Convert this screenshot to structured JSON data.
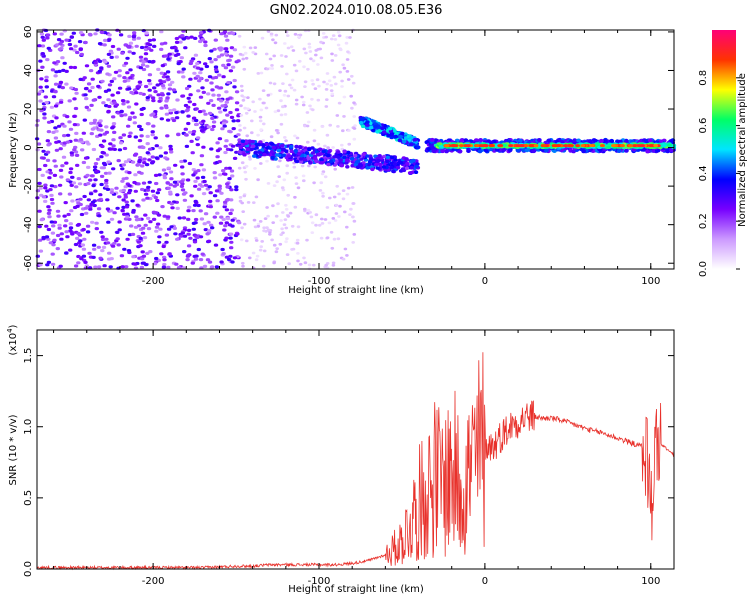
{
  "title": "GN02.2024.010.08.05.E36",
  "colors": {
    "snr_line": "#e8302a",
    "axes": "#000000"
  },
  "chart_data": [
    {
      "type": "heatmap",
      "xlabel": "Height of straight line (km)",
      "ylabel": "Frequency (Hz)",
      "xlim": [
        -270,
        114
      ],
      "ylim": [
        -63,
        61
      ],
      "xticks": [
        -200,
        -100,
        0,
        100
      ],
      "yticks": [
        -60,
        -40,
        -20,
        0,
        20,
        40,
        60
      ],
      "colorbar": {
        "label": "Normalized spectral amplitude",
        "ticks": [
          "0.0",
          "0.2",
          "0.4",
          "0.6",
          "0.8"
        ],
        "range": [
          0,
          1
        ],
        "colormap": [
          "#ffffff",
          "#cc99ff",
          "#7700ff",
          "#0000ff",
          "#00e5ff",
          "#00ff66",
          "#ffff00",
          "#ff3300",
          "#ff0077"
        ]
      },
      "features": [
        {
          "x_range": [
            -270,
            -148
          ],
          "y_range": [
            -63,
            61
          ],
          "level": "scattered broadband"
        },
        {
          "x_range": [
            -148,
            -40
          ],
          "center_hz_start": 0,
          "center_hz_end": -10,
          "level": "mid"
        },
        {
          "x_range": [
            -75,
            -40
          ],
          "center_hz_start": 14,
          "center_hz_end": 2,
          "level": "mid-high"
        },
        {
          "x_range": [
            -35,
            114
          ],
          "center_hz": 1,
          "level": "high"
        }
      ]
    },
    {
      "type": "line",
      "xlabel": "Height of straight line (km)",
      "ylabel": "SNR (10 * v/v)",
      "yscale_label": "(x10",
      "yscale_exp": "4",
      "xlim": [
        -270,
        114
      ],
      "ylim": [
        0,
        1.68
      ],
      "xticks": [
        -200,
        -100,
        0,
        100
      ],
      "yticks": [
        "0.0",
        "0.5",
        "1.0",
        "1.5"
      ],
      "series": [
        {
          "x": [
            -270,
            -250,
            -230,
            -210,
            -190,
            -170,
            -150,
            -140,
            -130,
            -120,
            -110,
            -100,
            -90,
            -80,
            -75,
            -70,
            -65,
            -60,
            -55,
            -50,
            -45,
            -40,
            -35,
            -30,
            -25,
            -20,
            -15,
            -10,
            -5,
            0,
            5,
            10,
            15,
            20,
            25,
            30,
            35,
            40,
            45,
            50,
            55,
            60,
            65,
            70,
            75,
            80,
            85,
            90,
            95,
            98,
            100,
            102,
            104,
            106,
            110,
            114
          ],
          "y": [
            0.01,
            0.01,
            0.01,
            0.01,
            0.01,
            0.01,
            0.02,
            0.02,
            0.03,
            0.03,
            0.03,
            0.03,
            0.03,
            0.04,
            0.05,
            0.06,
            0.08,
            0.1,
            0.14,
            0.2,
            0.32,
            0.45,
            0.55,
            0.65,
            0.6,
            0.7,
            0.6,
            0.66,
            0.78,
            0.88,
            0.86,
            0.94,
            1.0,
            1.04,
            1.07,
            1.07,
            1.06,
            1.06,
            1.05,
            1.03,
            1.01,
            0.99,
            0.97,
            0.96,
            0.94,
            0.92,
            0.9,
            0.88,
            0.86,
            0.8,
            0.35,
            0.8,
            0.9,
            0.88,
            0.84,
            0.8
          ]
        }
      ]
    }
  ]
}
